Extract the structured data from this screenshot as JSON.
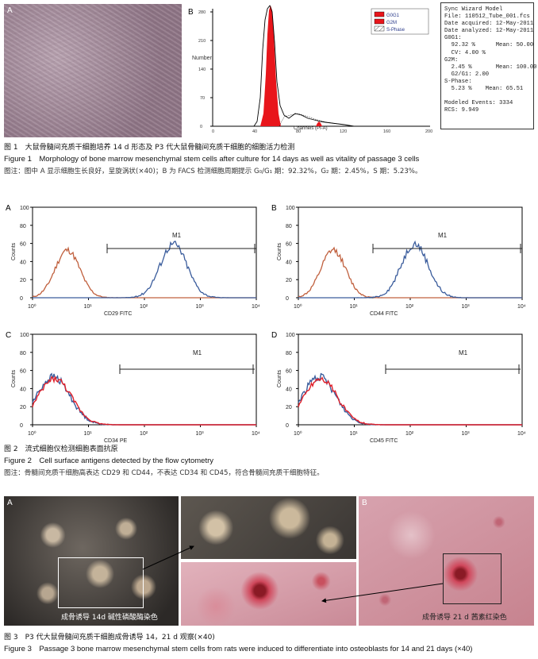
{
  "figure1": {
    "panel_a_label": "A",
    "panel_b_label": "B",
    "histogram": {
      "y_label": "Number",
      "x_label": "Channels (PI-A)",
      "y_ticks": [
        "0",
        "70",
        "140",
        "210",
        "280"
      ],
      "x_ticks": [
        "0",
        "40",
        "80",
        "120",
        "160",
        "200"
      ],
      "legend": [
        "G0G1",
        "G2M",
        "S-Phase"
      ]
    },
    "sync_model": {
      "lines": [
        "Sync Wizard Model",
        "File: 110512_Tube_001.fcs",
        "Date acquired: 12-May-2011",
        "Date analyzed: 12-May-2011",
        "G0G1:",
        "  92.32 %      Mean: 50.00",
        "  CV: 4.00 %",
        "G2M:",
        "  2.45 %       Mean: 100.00",
        "  G2/G1: 2.00",
        "S-Phase:",
        "  5.23 %    Mean: 65.51",
        "",
        "Modeled Events: 3334",
        "RCS: 9.949"
      ]
    },
    "caption_cn": "图 1　大鼠骨髓间充质干细胞培养 14 d 形态及 P3 代大鼠骨髓间充质干细胞的细胞活力检测",
    "caption_en": "Figure 1　Morphology of bone marrow mesenchymal stem cells after culture for 14 days as well as vitality of passage 3 cells",
    "note": "图注：图中 A 显示细胞生长良好，呈旋涡状(×40)；B 为 FACS 检测细胞周期提示 G₀/G₁ 期：92.32%，G₂ 期：2.45%，S 期：5.23%。"
  },
  "figure2": {
    "panels": [
      {
        "label": "A",
        "xlabel": "CD29 FITC",
        "marker": "M1"
      },
      {
        "label": "B",
        "xlabel": "CD44 FITC",
        "marker": "M1"
      },
      {
        "label": "C",
        "xlabel": "CD34 PE",
        "marker": "M1"
      },
      {
        "label": "D",
        "xlabel": "CD45 FITC",
        "marker": "M1"
      }
    ],
    "y_label": "Counts",
    "y_ticks": [
      "0",
      "20",
      "40",
      "60",
      "80",
      "100"
    ],
    "x_ticks": [
      "10⁰",
      "10¹",
      "10²",
      "10³",
      "10⁴"
    ],
    "caption_cn": "图 2　流式细胞仪检测细胞表面抗原",
    "caption_en": "Figure 2　Cell surface antigens detected by the flow cytometry",
    "note": "图注：骨髓间充质干细胞高表达 CD29 和 CD44，不表达 CD34 和 CD45，符合骨髓间充质干细胞特征。"
  },
  "figure3": {
    "panel_a_label": "A",
    "panel_b_label": "B",
    "label_a": "成骨诱导 14d 碱性磷酸酶染色",
    "label_b": "成骨诱导 21 d 茜素红染色",
    "caption_cn": "图 3　P3 代大鼠骨髓间充质干细胞成骨诱导 14，21 d 观察(×40)",
    "caption_en": "Figure 3　Passage 3 bone marrow mesenchymal stem cells from rats were induced to differentiate into osteoblasts for 14 and 21 days (×40)"
  },
  "colors": {
    "g0g1_fill": "#e8151b",
    "isotype": "#c0603e",
    "marker_blue": "#3a5c9c",
    "overlay_red": "#e0202a",
    "pink_bg": "#d9a0ac",
    "micro_dark": "#3a3633"
  }
}
